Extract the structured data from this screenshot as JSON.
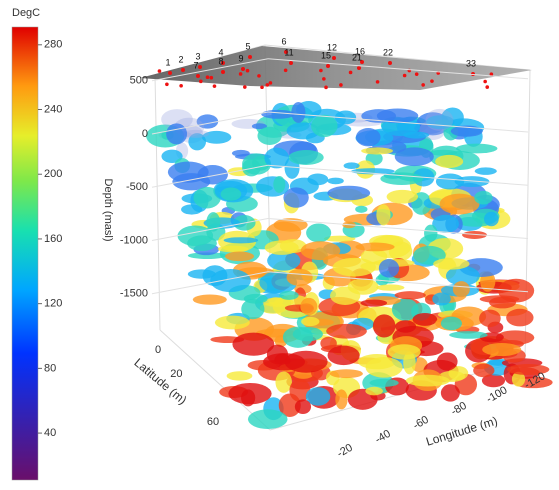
{
  "colorbar": {
    "title": "DegC",
    "range": [
      11,
      291
    ],
    "ticks": [
      280,
      240,
      200,
      160,
      120,
      80,
      40
    ]
  },
  "axes": {
    "z": {
      "label": "Depth (masl)",
      "ticks": [
        500,
        0,
        -500,
        -1000,
        -1500
      ]
    },
    "y": {
      "label": "Latitude (m)",
      "ticks": [
        0,
        20,
        60
      ]
    },
    "x": {
      "label": "Longitude (m)",
      "ticks": [
        -120,
        -100,
        -80,
        -60,
        -40,
        -20
      ]
    }
  },
  "wells": [
    "1",
    "2",
    "3",
    "4",
    "5",
    "6",
    "7",
    "8",
    "9",
    "11",
    "12",
    "15",
    "16",
    "21",
    "22",
    "33"
  ]
}
